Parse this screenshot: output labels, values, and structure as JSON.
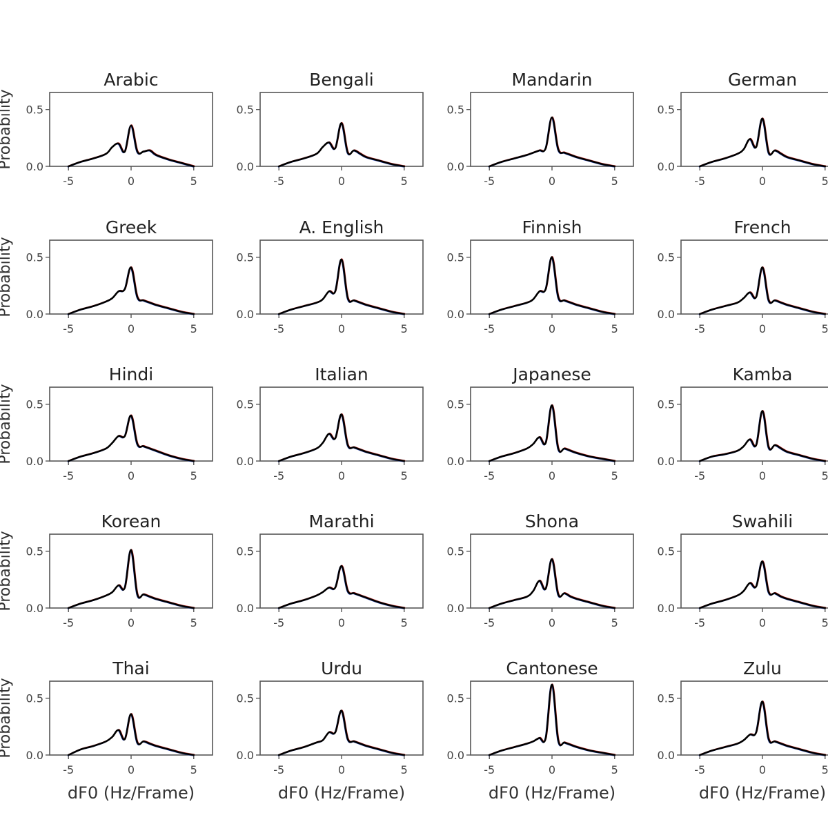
{
  "chart_data": {
    "type": "line",
    "layout": "small-multiples",
    "rows": 5,
    "cols": 4,
    "xlabel": "dF0 (Hz/Frame)",
    "ylabel": "Probability",
    "xlim": [
      -6.5,
      6.5
    ],
    "ylim": [
      0,
      0.65
    ],
    "x_ticks": [
      "-5",
      "0",
      "5"
    ],
    "y_ticks": [
      "0.0",
      "0.5"
    ],
    "grid": false,
    "series_colors": [
      "#1f3fbf",
      "#c9b400",
      "#d62728",
      "#000000"
    ],
    "panels": [
      {
        "title": "Arabic",
        "x": [
          -5,
          -4,
          -3,
          -2,
          -1.5,
          -1,
          -0.5,
          0,
          0.5,
          1,
          1.5,
          2,
          3,
          4,
          5
        ],
        "y": [
          0.0,
          0.04,
          0.07,
          0.11,
          0.17,
          0.2,
          0.13,
          0.36,
          0.13,
          0.13,
          0.14,
          0.1,
          0.06,
          0.03,
          0.0
        ]
      },
      {
        "title": "Bengali",
        "x": [
          -5,
          -4,
          -3,
          -2,
          -1.5,
          -1,
          -0.5,
          0,
          0.5,
          1,
          1.5,
          2,
          3,
          4,
          5
        ],
        "y": [
          0.0,
          0.04,
          0.07,
          0.11,
          0.17,
          0.21,
          0.16,
          0.38,
          0.12,
          0.14,
          0.11,
          0.08,
          0.05,
          0.02,
          0.0
        ]
      },
      {
        "title": "Mandarin",
        "x": [
          -5,
          -4,
          -3,
          -2,
          -1.5,
          -1,
          -0.5,
          0,
          0.5,
          1,
          1.5,
          2,
          3,
          4,
          5
        ],
        "y": [
          0.0,
          0.04,
          0.07,
          0.1,
          0.12,
          0.14,
          0.16,
          0.43,
          0.15,
          0.12,
          0.1,
          0.08,
          0.05,
          0.02,
          0.0
        ]
      },
      {
        "title": "German",
        "x": [
          -5,
          -4,
          -3,
          -2,
          -1.5,
          -1,
          -0.5,
          0,
          0.5,
          1,
          1.5,
          2,
          3,
          4,
          5
        ],
        "y": [
          0.0,
          0.04,
          0.07,
          0.11,
          0.15,
          0.24,
          0.17,
          0.42,
          0.12,
          0.14,
          0.11,
          0.08,
          0.05,
          0.02,
          0.0
        ]
      },
      {
        "title": "Greek",
        "x": [
          -5,
          -4,
          -3,
          -2,
          -1.5,
          -1,
          -0.5,
          0,
          0.5,
          1,
          1.5,
          2,
          3,
          4,
          5
        ],
        "y": [
          0.0,
          0.04,
          0.07,
          0.11,
          0.14,
          0.2,
          0.22,
          0.41,
          0.15,
          0.12,
          0.1,
          0.08,
          0.05,
          0.02,
          0.0
        ]
      },
      {
        "title": "A. English",
        "x": [
          -5,
          -4,
          -3,
          -2,
          -1.5,
          -1,
          -0.5,
          0,
          0.5,
          1,
          1.5,
          2,
          3,
          4,
          5
        ],
        "y": [
          0.0,
          0.04,
          0.07,
          0.1,
          0.13,
          0.2,
          0.2,
          0.48,
          0.14,
          0.12,
          0.1,
          0.08,
          0.05,
          0.02,
          0.0
        ]
      },
      {
        "title": "Finnish",
        "x": [
          -5,
          -4,
          -3,
          -2,
          -1.5,
          -1,
          -0.5,
          0,
          0.5,
          1,
          1.5,
          2,
          3,
          4,
          5
        ],
        "y": [
          0.0,
          0.04,
          0.07,
          0.1,
          0.13,
          0.2,
          0.22,
          0.5,
          0.15,
          0.12,
          0.1,
          0.08,
          0.05,
          0.02,
          0.0
        ]
      },
      {
        "title": "French",
        "x": [
          -5,
          -4,
          -3,
          -2,
          -1.5,
          -1,
          -0.5,
          0,
          0.5,
          1,
          1.5,
          2,
          3,
          4,
          5
        ],
        "y": [
          0.0,
          0.04,
          0.07,
          0.1,
          0.14,
          0.19,
          0.15,
          0.41,
          0.12,
          0.12,
          0.1,
          0.08,
          0.05,
          0.02,
          0.0
        ]
      },
      {
        "title": "Hindi",
        "x": [
          -5,
          -4,
          -3,
          -2,
          -1.5,
          -1,
          -0.5,
          0,
          0.5,
          1,
          1.5,
          2,
          3,
          4,
          5
        ],
        "y": [
          0.0,
          0.04,
          0.07,
          0.11,
          0.16,
          0.22,
          0.22,
          0.4,
          0.15,
          0.13,
          0.11,
          0.09,
          0.05,
          0.02,
          0.0
        ]
      },
      {
        "title": "Italian",
        "x": [
          -5,
          -4,
          -3,
          -2,
          -1.5,
          -1,
          -0.5,
          0,
          0.5,
          1,
          1.5,
          2,
          3,
          4,
          5
        ],
        "y": [
          0.0,
          0.04,
          0.07,
          0.11,
          0.16,
          0.24,
          0.2,
          0.41,
          0.14,
          0.12,
          0.1,
          0.08,
          0.05,
          0.02,
          0.0
        ]
      },
      {
        "title": "Japanese",
        "x": [
          -5,
          -4,
          -3,
          -2,
          -1.5,
          -1,
          -0.5,
          0,
          0.5,
          1,
          1.5,
          2,
          3,
          4,
          5
        ],
        "y": [
          0.0,
          0.04,
          0.07,
          0.11,
          0.15,
          0.21,
          0.16,
          0.49,
          0.11,
          0.11,
          0.09,
          0.07,
          0.04,
          0.02,
          0.0
        ]
      },
      {
        "title": "Kamba",
        "x": [
          -5,
          -4,
          -3,
          -2,
          -1.5,
          -1,
          -0.5,
          0,
          0.5,
          1,
          1.5,
          2,
          3,
          4,
          5
        ],
        "y": [
          0.0,
          0.04,
          0.06,
          0.09,
          0.13,
          0.19,
          0.14,
          0.44,
          0.12,
          0.14,
          0.11,
          0.08,
          0.05,
          0.02,
          0.0
        ]
      },
      {
        "title": "Korean",
        "x": [
          -5,
          -4,
          -3,
          -2,
          -1.5,
          -1,
          -0.5,
          0,
          0.5,
          1,
          1.5,
          2,
          3,
          4,
          5
        ],
        "y": [
          0.0,
          0.04,
          0.07,
          0.11,
          0.14,
          0.2,
          0.18,
          0.51,
          0.12,
          0.12,
          0.1,
          0.08,
          0.05,
          0.02,
          0.0
        ]
      },
      {
        "title": "Marathi",
        "x": [
          -5,
          -4,
          -3,
          -2,
          -1.5,
          -1,
          -0.5,
          0,
          0.5,
          1,
          1.5,
          2,
          3,
          4,
          5
        ],
        "y": [
          0.0,
          0.04,
          0.07,
          0.11,
          0.14,
          0.18,
          0.18,
          0.37,
          0.15,
          0.13,
          0.11,
          0.09,
          0.05,
          0.02,
          0.0
        ]
      },
      {
        "title": "Shona",
        "x": [
          -5,
          -4,
          -3,
          -2,
          -1.5,
          -1,
          -0.5,
          0,
          0.5,
          1,
          1.5,
          2,
          3,
          4,
          5
        ],
        "y": [
          0.0,
          0.04,
          0.07,
          0.1,
          0.15,
          0.24,
          0.17,
          0.43,
          0.12,
          0.13,
          0.1,
          0.08,
          0.05,
          0.02,
          0.0
        ]
      },
      {
        "title": "Swahili",
        "x": [
          -5,
          -4,
          -3,
          -2,
          -1.5,
          -1,
          -0.5,
          0,
          0.5,
          1,
          1.5,
          2,
          3,
          4,
          5
        ],
        "y": [
          0.0,
          0.04,
          0.07,
          0.11,
          0.15,
          0.22,
          0.19,
          0.41,
          0.14,
          0.13,
          0.1,
          0.08,
          0.05,
          0.02,
          0.0
        ]
      },
      {
        "title": "Thai",
        "x": [
          -5,
          -4,
          -3,
          -2,
          -1.5,
          -1,
          -0.5,
          0,
          0.5,
          1,
          1.5,
          2,
          3,
          4,
          5
        ],
        "y": [
          0.0,
          0.05,
          0.08,
          0.12,
          0.16,
          0.22,
          0.14,
          0.36,
          0.11,
          0.12,
          0.1,
          0.08,
          0.05,
          0.02,
          0.0
        ]
      },
      {
        "title": "Urdu",
        "x": [
          -5,
          -4,
          -3,
          -2,
          -1.5,
          -1,
          -0.5,
          0,
          0.5,
          1,
          1.5,
          2,
          3,
          4,
          5
        ],
        "y": [
          0.0,
          0.04,
          0.07,
          0.11,
          0.13,
          0.2,
          0.2,
          0.39,
          0.14,
          0.12,
          0.1,
          0.08,
          0.05,
          0.02,
          0.0
        ]
      },
      {
        "title": "Cantonese",
        "x": [
          -5,
          -4,
          -3,
          -2,
          -1.5,
          -1,
          -0.5,
          0,
          0.5,
          1,
          1.5,
          2,
          3,
          4,
          5
        ],
        "y": [
          0.0,
          0.04,
          0.07,
          0.1,
          0.12,
          0.15,
          0.15,
          0.62,
          0.13,
          0.11,
          0.09,
          0.07,
          0.04,
          0.02,
          0.0
        ]
      },
      {
        "title": "Zulu",
        "x": [
          -5,
          -4,
          -3,
          -2,
          -1.5,
          -1,
          -0.5,
          0,
          0.5,
          1,
          1.5,
          2,
          3,
          4,
          5
        ],
        "y": [
          0.0,
          0.04,
          0.07,
          0.1,
          0.13,
          0.18,
          0.2,
          0.47,
          0.14,
          0.12,
          0.1,
          0.08,
          0.05,
          0.02,
          0.0
        ]
      }
    ]
  }
}
